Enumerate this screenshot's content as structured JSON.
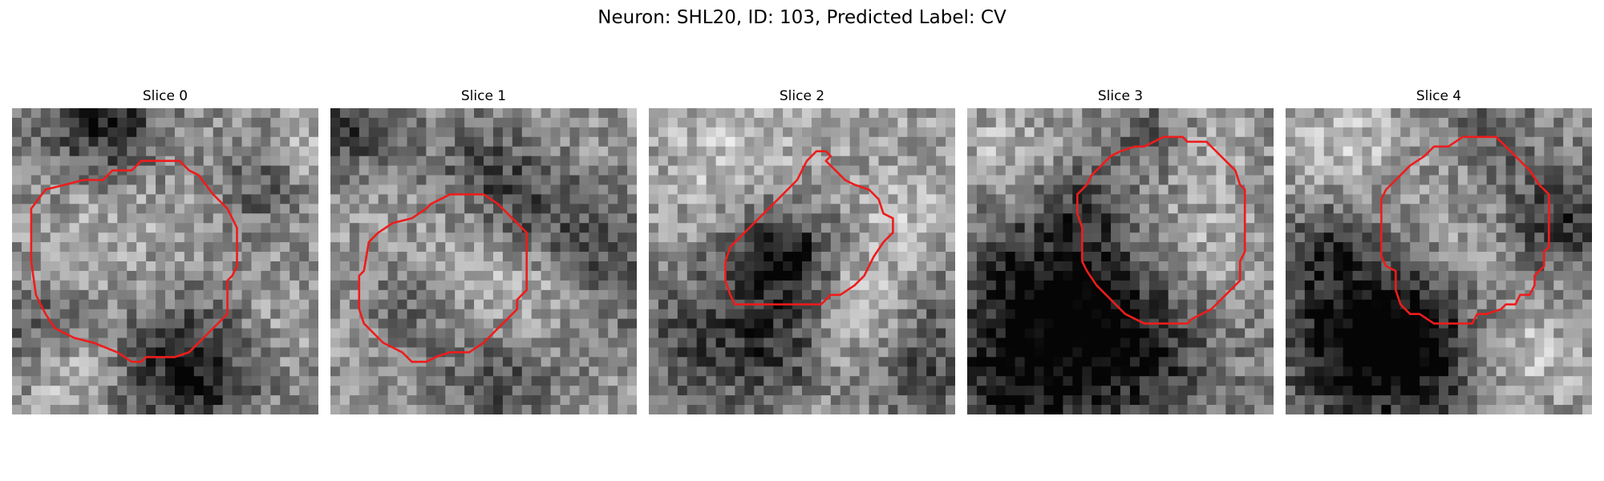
{
  "figure": {
    "title": "Neuron: SHL20, ID: 103, Predicted Label: CV"
  },
  "panels": [
    {
      "title": "Slice 0"
    },
    {
      "title": "Slice 1"
    },
    {
      "title": "Slice 2"
    },
    {
      "title": "Slice 3"
    },
    {
      "title": "Slice 4"
    }
  ],
  "image": {
    "grid": "32x32 grayscale pixels",
    "colormap": "gray",
    "contour_color": "#ee1c1c"
  }
}
